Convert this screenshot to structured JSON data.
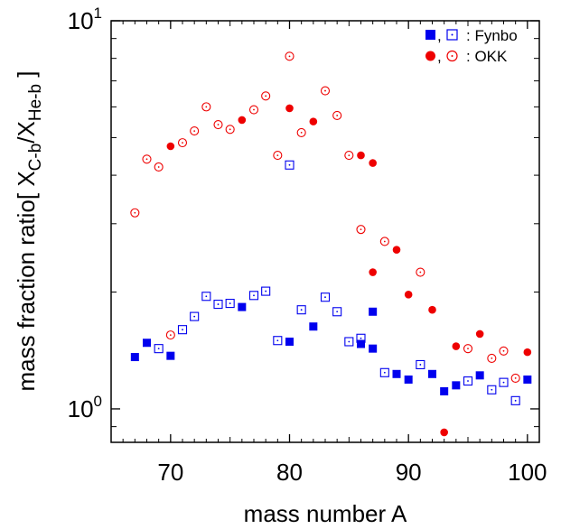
{
  "chart_data": {
    "type": "scatter",
    "xlabel": "mass number A",
    "ylabel": {
      "prefix": "mass fraction ratio[ X",
      "sub1": "C-b",
      "mid": "/X",
      "sub2": "He-b",
      "suffix": " ]"
    },
    "xlim": [
      65,
      101
    ],
    "ylim": [
      0.82,
      10
    ],
    "yscale": "log",
    "x_ticks": [
      70,
      80,
      90,
      100
    ],
    "y_ticks": [
      {
        "value": 1,
        "base": "10",
        "exp": "0"
      },
      {
        "value": 10,
        "base": "10",
        "exp": "1"
      }
    ],
    "grid": false,
    "legend_position": "top-right",
    "series": [
      {
        "name": "Fynbo",
        "marker_filled": "square",
        "marker_open": "square-open",
        "color": "#0000ee",
        "filled": [
          [
            67,
            1.36
          ],
          [
            68,
            1.48
          ],
          [
            70,
            1.37
          ],
          [
            76,
            1.83
          ],
          [
            80,
            1.49
          ],
          [
            82,
            1.63
          ],
          [
            86,
            1.47
          ],
          [
            87,
            1.78
          ],
          [
            87,
            1.43
          ],
          [
            89,
            1.23
          ],
          [
            90,
            1.19
          ],
          [
            92,
            1.23
          ],
          [
            93,
            1.11
          ],
          [
            94,
            1.15
          ],
          [
            96,
            1.22
          ],
          [
            100,
            1.19
          ]
        ],
        "open": [
          [
            69,
            1.43
          ],
          [
            71,
            1.6
          ],
          [
            72,
            1.73
          ],
          [
            73,
            1.95
          ],
          [
            74,
            1.86
          ],
          [
            75,
            1.87
          ],
          [
            77,
            1.96
          ],
          [
            78,
            2.01
          ],
          [
            79,
            1.5
          ],
          [
            80,
            4.25
          ],
          [
            81,
            1.8
          ],
          [
            83,
            1.94
          ],
          [
            84,
            1.78
          ],
          [
            85,
            1.49
          ],
          [
            86,
            1.52
          ],
          [
            88,
            1.24
          ],
          [
            91,
            1.3
          ],
          [
            95,
            1.18
          ],
          [
            97,
            1.12
          ],
          [
            98,
            1.17
          ],
          [
            99,
            1.05
          ]
        ]
      },
      {
        "name": "OKK",
        "marker_filled": "circle",
        "marker_open": "circle-open",
        "color": "#ee0000",
        "filled": [
          [
            70,
            4.75
          ],
          [
            76,
            5.55
          ],
          [
            80,
            5.95
          ],
          [
            82,
            5.5
          ],
          [
            86,
            4.5
          ],
          [
            87,
            4.3
          ],
          [
            89,
            2.57
          ],
          [
            87,
            2.25
          ],
          [
            90,
            1.97
          ],
          [
            92,
            1.8
          ],
          [
            93,
            0.87
          ],
          [
            94,
            1.45
          ],
          [
            96,
            1.56
          ],
          [
            100,
            1.4
          ]
        ],
        "open": [
          [
            67,
            3.2
          ],
          [
            68,
            4.4
          ],
          [
            69,
            4.2
          ],
          [
            70,
            1.55
          ],
          [
            71,
            4.85
          ],
          [
            72,
            5.2
          ],
          [
            73,
            6.0
          ],
          [
            74,
            5.4
          ],
          [
            75,
            5.25
          ],
          [
            77,
            5.9
          ],
          [
            78,
            6.4
          ],
          [
            79,
            4.5
          ],
          [
            80,
            8.1
          ],
          [
            81,
            5.15
          ],
          [
            83,
            6.6
          ],
          [
            84,
            5.7
          ],
          [
            85,
            4.5
          ],
          [
            86,
            2.9
          ],
          [
            88,
            2.7
          ],
          [
            91,
            2.25
          ],
          [
            95,
            1.43
          ],
          [
            97,
            1.35
          ],
          [
            98,
            1.41
          ],
          [
            99,
            1.2
          ]
        ]
      }
    ]
  },
  "legend": {
    "entries": [
      {
        "series": "Fynbo",
        "separator": ",",
        "label": ": Fynbo"
      },
      {
        "series": "OKK",
        "separator": ",",
        "label": ": OKK"
      }
    ]
  }
}
